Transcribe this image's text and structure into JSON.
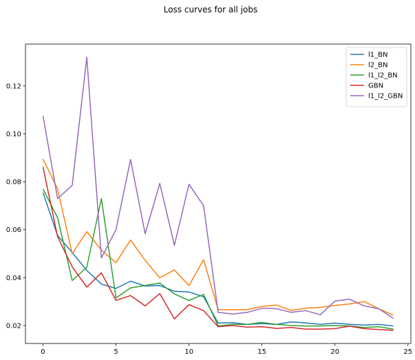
{
  "chart_data": {
    "type": "line",
    "title": "Loss curves for all jobs",
    "xlabel": "",
    "ylabel": "",
    "xlim": [
      -1.2,
      25.2
    ],
    "ylim": [
      0.0125,
      0.1375
    ],
    "xticks": [
      0,
      5,
      10,
      15,
      20,
      25
    ],
    "yticks": [
      0.02,
      0.04,
      0.06,
      0.08,
      0.1,
      0.12
    ],
    "ytick_labels": [
      "0.02",
      "0.04",
      "0.06",
      "0.08",
      "0.10",
      "0.12"
    ],
    "x": [
      0,
      1,
      2,
      3,
      4,
      5,
      6,
      7,
      8,
      9,
      10,
      11,
      12,
      13,
      14,
      15,
      16,
      17,
      18,
      19,
      20,
      21,
      22,
      23,
      24
    ],
    "legend_position": "top-right",
    "grid": false,
    "series": [
      {
        "name": "l1_BN",
        "color": "#1f77b4",
        "values": [
          0.0755,
          0.0575,
          0.0505,
          0.043,
          0.0373,
          0.0355,
          0.0385,
          0.0365,
          0.0367,
          0.0343,
          0.034,
          0.032,
          0.021,
          0.0212,
          0.0205,
          0.0208,
          0.0205,
          0.0215,
          0.0211,
          0.0205,
          0.021,
          0.0205,
          0.0202,
          0.0205,
          0.0198
        ]
      },
      {
        "name": "l2_BN",
        "color": "#ff7f0e",
        "values": [
          0.0895,
          0.077,
          0.05,
          0.0592,
          0.0515,
          0.0462,
          0.0557,
          0.0472,
          0.0399,
          0.0432,
          0.0367,
          0.0474,
          0.0266,
          0.0266,
          0.0266,
          0.028,
          0.0285,
          0.0263,
          0.0272,
          0.0276,
          0.0284,
          0.029,
          0.03,
          0.027,
          0.0243
        ]
      },
      {
        "name": "l1_l2_BN",
        "color": "#2ca02c",
        "values": [
          0.077,
          0.065,
          0.0388,
          0.0443,
          0.073,
          0.0315,
          0.0357,
          0.0367,
          0.0377,
          0.0332,
          0.0305,
          0.033,
          0.0198,
          0.0205,
          0.0205,
          0.0213,
          0.0205,
          0.02,
          0.0198,
          0.0198,
          0.02,
          0.0198,
          0.0192,
          0.0195,
          0.0185
        ]
      },
      {
        "name": "GBN",
        "color": "#d62728",
        "values": [
          0.0862,
          0.057,
          0.0445,
          0.036,
          0.042,
          0.0305,
          0.0325,
          0.0282,
          0.0333,
          0.0228,
          0.0287,
          0.0262,
          0.0195,
          0.02,
          0.0193,
          0.0195,
          0.0188,
          0.0192,
          0.0185,
          0.0185,
          0.0187,
          0.0197,
          0.0187,
          0.0183,
          0.018
        ]
      },
      {
        "name": "l1_l2_GBN",
        "color": "#9467bd",
        "values": [
          0.1075,
          0.073,
          0.0785,
          0.132,
          0.0482,
          0.06,
          0.0893,
          0.0583,
          0.0793,
          0.0535,
          0.079,
          0.07,
          0.0255,
          0.0248,
          0.0255,
          0.0272,
          0.027,
          0.0255,
          0.0262,
          0.0245,
          0.0302,
          0.031,
          0.0282,
          0.027,
          0.023
        ]
      }
    ]
  }
}
